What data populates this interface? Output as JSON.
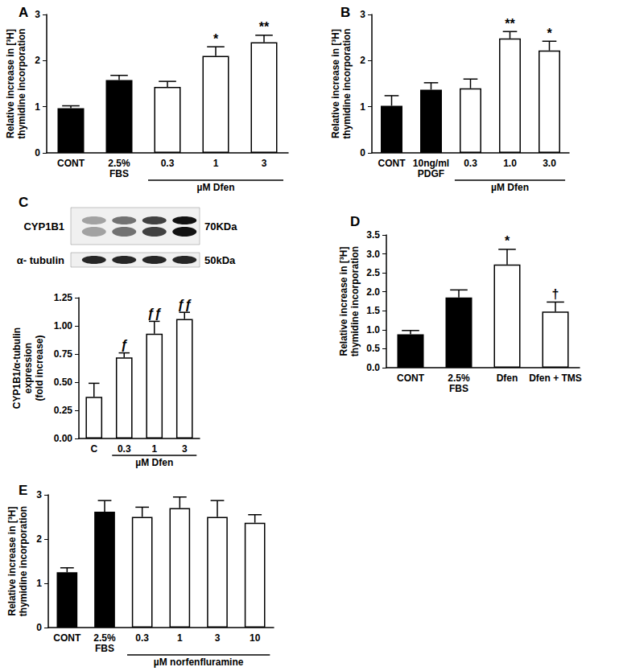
{
  "chart_data": [
    {
      "panel": "A",
      "type": "bar",
      "y_label": "Relative increase in [³H]\nthymidine incorporation",
      "categories": [
        "CONT",
        "2.5%\nFBS",
        "0.3",
        "1",
        "3"
      ],
      "values": [
        0.97,
        1.58,
        1.43,
        2.1,
        2.4
      ],
      "errors": [
        0.05,
        0.1,
        0.12,
        0.2,
        0.15
      ],
      "colors": [
        "#000000",
        "#000000",
        "#ffffff",
        "#ffffff",
        "#ffffff"
      ],
      "significance": [
        null,
        null,
        null,
        "*",
        "**"
      ],
      "group": {
        "label": "µM Dfen",
        "from": "0.3",
        "to": "3"
      },
      "ylim": [
        0,
        3
      ],
      "yticks": [
        0,
        1,
        2,
        3
      ],
      "grid": false
    },
    {
      "panel": "B",
      "type": "bar",
      "y_label": "Relative increase in [³H]\nthymidine incorporation",
      "categories": [
        "CONT",
        "10ng/ml\nPDGF",
        "0.3",
        "1.0",
        "3.0"
      ],
      "values": [
        1.02,
        1.37,
        1.4,
        2.48,
        2.22
      ],
      "errors": [
        0.22,
        0.15,
        0.2,
        0.15,
        0.2
      ],
      "colors": [
        "#000000",
        "#000000",
        "#ffffff",
        "#ffffff",
        "#ffffff"
      ],
      "significance": [
        null,
        null,
        null,
        "**",
        "*"
      ],
      "group": {
        "label": "µM Dfen",
        "from": "0.3",
        "to": "3.0"
      },
      "ylim": [
        0,
        3
      ],
      "yticks": [
        0,
        1,
        2,
        3
      ],
      "grid": false
    },
    {
      "panel": "C",
      "type": "bar",
      "y_label": "CYP1B1/α-tubulin\nexpression\n(fold increase)",
      "blot": [
        {
          "label": "CYP1B1",
          "size": "70KDa"
        },
        {
          "label": "α- tubulin",
          "size": "50kDa"
        }
      ],
      "categories": [
        "C",
        "0.3",
        "1",
        "3"
      ],
      "values": [
        0.37,
        0.72,
        0.93,
        1.06
      ],
      "errors": [
        0.12,
        0.04,
        0.11,
        0.06
      ],
      "colors": [
        "#ffffff",
        "#ffffff",
        "#ffffff",
        "#ffffff"
      ],
      "significance": [
        null,
        "ƒ",
        "ƒƒ",
        "ƒƒ"
      ],
      "group": {
        "label": "µM Dfen",
        "from": "0.3",
        "to": "3"
      },
      "ylim": [
        0,
        1.25
      ],
      "yticks": [
        {
          "value": 0,
          "label": "0.00"
        },
        {
          "value": 0.25,
          "label": "0.25"
        },
        {
          "value": 0.5,
          "label": "0.50"
        },
        {
          "value": 0.75,
          "label": "0.75"
        },
        {
          "value": 1,
          "label": "1.00"
        },
        {
          "value": 1.25,
          "label": "1.25"
        }
      ],
      "grid": false
    },
    {
      "panel": "D",
      "type": "bar",
      "y_label": "Relative increase in [³H]\nthymidine incorporation",
      "categories": [
        "CONT",
        "2.5%\nFBS",
        "Dfen",
        "Dfen + TMS"
      ],
      "values": [
        0.88,
        1.85,
        2.72,
        1.48
      ],
      "errors": [
        0.1,
        0.2,
        0.4,
        0.25
      ],
      "colors": [
        "#000000",
        "#000000",
        "#ffffff",
        "#ffffff"
      ],
      "significance": [
        null,
        null,
        "*",
        "†"
      ],
      "ylim": [
        0,
        3.5
      ],
      "yticks": [
        {
          "value": 0,
          "label": "0.0"
        },
        {
          "value": 0.5,
          "label": "0.5"
        },
        {
          "value": 1,
          "label": "1.0"
        },
        {
          "value": 1.5,
          "label": "1.5"
        },
        {
          "value": 2,
          "label": "2.0"
        },
        {
          "value": 2.5,
          "label": "2.5"
        },
        {
          "value": 3,
          "label": "3.0"
        },
        {
          "value": 3.5,
          "label": "3.5"
        }
      ],
      "grid": false
    },
    {
      "panel": "E",
      "type": "bar",
      "y_label": "Relative increase in [³H]\nthymidine incorporation",
      "categories": [
        "CONT",
        "2.5%\nFBS",
        "0.3",
        "1",
        "3",
        "10"
      ],
      "values": [
        1.25,
        2.62,
        2.5,
        2.7,
        2.5,
        2.37
      ],
      "errors": [
        0.1,
        0.25,
        0.22,
        0.25,
        0.37,
        0.18
      ],
      "colors": [
        "#000000",
        "#000000",
        "#ffffff",
        "#ffffff",
        "#ffffff",
        "#ffffff"
      ],
      "significance": [
        null,
        null,
        null,
        null,
        null,
        null
      ],
      "group": {
        "label": "µM norfenfluramine",
        "from": "0.3",
        "to": "10"
      },
      "ylim": [
        0,
        3
      ],
      "yticks": [
        0,
        1,
        2,
        3
      ],
      "grid": false
    }
  ]
}
